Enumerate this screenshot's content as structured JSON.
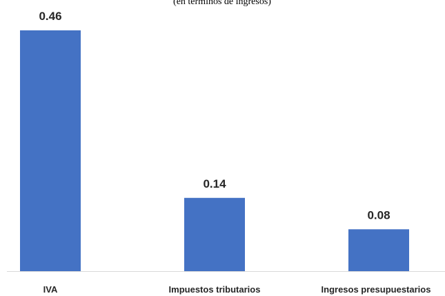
{
  "chart_data": {
    "type": "bar",
    "title": "(en términos de ingresos)",
    "categories": [
      "IVA",
      "Impuestos tributarios",
      "Ingresos presupuestarios"
    ],
    "values": [
      0.46,
      0.14,
      0.08
    ],
    "data_labels": [
      "0.46",
      "0.14",
      "0.08"
    ],
    "xlabel": "",
    "ylabel": "",
    "ylim": [
      0,
      0.46
    ],
    "grid": false,
    "legend": "none",
    "bar_color": "#4472C4",
    "axis_color": "#D9D9D9"
  }
}
